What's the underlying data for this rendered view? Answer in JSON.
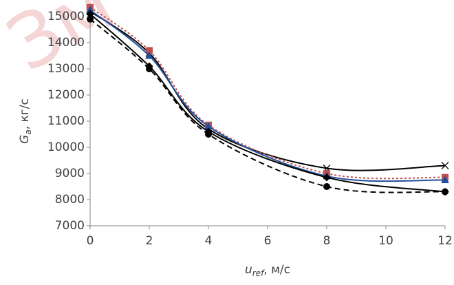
{
  "chart_data": {
    "type": "line",
    "watermark": "Зм",
    "x_label": {
      "symbol": "u",
      "subscript": "ref",
      "unit": ", м/с"
    },
    "y_label": {
      "symbol": "G",
      "subscript": "a",
      "unit": ", кг/с"
    },
    "x": [
      0,
      2,
      4,
      8,
      12
    ],
    "xlim": [
      0,
      12
    ],
    "xticks": [
      0,
      2,
      4,
      6,
      8,
      10,
      12
    ],
    "ylim": [
      7000,
      15000
    ],
    "yticks": [
      7000,
      8000,
      9000,
      10000,
      11000,
      12000,
      13000,
      14000,
      15000
    ],
    "grid": false,
    "smooth": true,
    "series": [
      {
        "color": "#000000",
        "marker": "circle",
        "dash": "dashed",
        "values": [
          14900,
          13000,
          10500,
          8500,
          8300
        ]
      },
      {
        "color": "#000000",
        "marker": "x",
        "dash": "solid",
        "values": [
          15200,
          13600,
          10700,
          9200,
          9300
        ]
      },
      {
        "color": "#c0504d",
        "marker": "square",
        "dash": "dotted",
        "values": [
          15350,
          13700,
          10850,
          9000,
          8850
        ]
      },
      {
        "color": "#1f4e9c",
        "marker": "triangle",
        "dash": "solid",
        "values": [
          15250,
          13500,
          10800,
          8900,
          8750
        ]
      },
      {
        "color": "#000000",
        "marker": "diamond",
        "dash": "solid",
        "values": [
          15100,
          13100,
          10600,
          8850,
          8300
        ]
      }
    ]
  }
}
